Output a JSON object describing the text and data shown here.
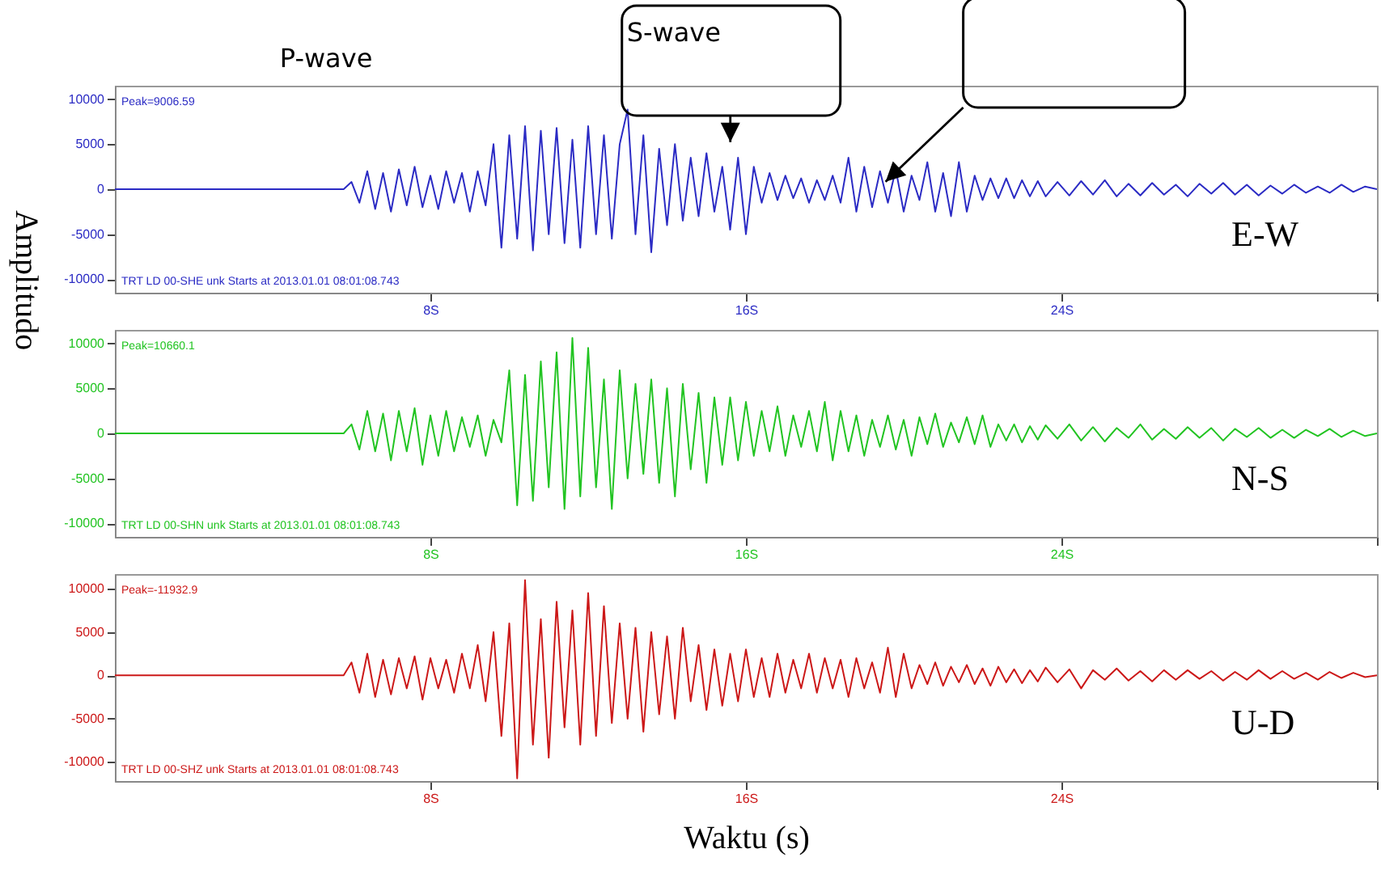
{
  "chart_data": [
    {
      "type": "line",
      "title": "E-W",
      "ylabel": "Amplitudo",
      "color": "#2b2bc4",
      "x": [
        0,
        1,
        2,
        3,
        4,
        5,
        5.8,
        6,
        6.2,
        6.4,
        6.6,
        6.8,
        7,
        7.2,
        7.4,
        7.6,
        7.8,
        8,
        8.2,
        8.4,
        8.6,
        8.8,
        9,
        9.2,
        9.4,
        9.6,
        9.8,
        10,
        10.2,
        10.4,
        10.6,
        10.8,
        11,
        11.2,
        11.4,
        11.6,
        11.8,
        12,
        12.2,
        12.4,
        12.6,
        12.8,
        13,
        13.2,
        13.4,
        13.6,
        13.8,
        14,
        14.2,
        14.4,
        14.6,
        14.8,
        15,
        15.2,
        15.4,
        15.6,
        15.8,
        16,
        16.2,
        16.4,
        16.6,
        16.8,
        17,
        17.2,
        17.4,
        17.6,
        17.8,
        18,
        18.2,
        18.4,
        18.6,
        18.8,
        19,
        19.2,
        19.4,
        19.6,
        19.8,
        20,
        20.2,
        20.4,
        20.6,
        20.8,
        21,
        21.2,
        21.4,
        21.6,
        21.8,
        22,
        22.2,
        22.4,
        22.6,
        22.8,
        23,
        23.2,
        23.4,
        23.6,
        23.9,
        24.2,
        24.5,
        24.8,
        25.1,
        25.4,
        25.7,
        26,
        26.3,
        26.6,
        26.9,
        27.2,
        27.5,
        27.8,
        28.1,
        28.4,
        28.7,
        29,
        29.3,
        29.6,
        29.9,
        30.2,
        30.5,
        30.8,
        31.1,
        31.4,
        31.7,
        32
      ],
      "values": [
        0,
        0,
        0,
        0,
        0,
        0,
        0,
        800,
        -1500,
        2000,
        -2200,
        1800,
        -2500,
        2200,
        -1800,
        2500,
        -2000,
        1500,
        -2200,
        2000,
        -1500,
        1800,
        -2500,
        2000,
        -1800,
        5000,
        -6500,
        6000,
        -5500,
        7000,
        -6800,
        6500,
        -5000,
        6800,
        -6000,
        5500,
        -6500,
        7000,
        -5000,
        6000,
        -5500,
        5000,
        8850,
        -5000,
        6000,
        -7000,
        4500,
        -4000,
        5000,
        -3500,
        3500,
        -3000,
        4000,
        -2500,
        2500,
        -4500,
        3500,
        -5000,
        2500,
        -1500,
        1800,
        -1200,
        1500,
        -1000,
        1200,
        -1500,
        1000,
        -1200,
        1500,
        -1500,
        3500,
        -2500,
        2500,
        -2000,
        2000,
        -1500,
        2200,
        -2500,
        1500,
        -1200,
        3000,
        -2500,
        1800,
        -3000,
        3000,
        -2500,
        1500,
        -1200,
        1200,
        -1000,
        1200,
        -1000,
        1000,
        -800,
        900,
        -800,
        800,
        -700,
        900,
        -600,
        1000,
        -800,
        600,
        -700,
        700,
        -600,
        500,
        -800,
        600,
        -500,
        700,
        -600,
        500,
        -700,
        400,
        -500,
        500,
        -400,
        300,
        -400,
        500,
        -300,
        300,
        0
      ],
      "xlim": [
        0,
        32
      ],
      "ylim": [
        -11500,
        11500
      ],
      "xticks": [
        {
          "value": 8,
          "label": "8S"
        },
        {
          "value": 16,
          "label": "16S"
        },
        {
          "value": 24,
          "label": "24S"
        },
        {
          "value": 32,
          "label": null
        }
      ],
      "yticks": [
        -10000,
        -5000,
        0,
        5000,
        10000
      ],
      "annotations": [
        "Peak=9006.59",
        "TRT LD 00-SHE  unk Starts at 2013.01.01 08:01:08.743",
        "P-wave",
        "S-wave"
      ]
    },
    {
      "type": "line",
      "title": "N-S",
      "color": "#22c422",
      "x": [
        0,
        1,
        2,
        3,
        4,
        5,
        5.8,
        6,
        6.2,
        6.4,
        6.6,
        6.8,
        7,
        7.2,
        7.4,
        7.6,
        7.8,
        8,
        8.2,
        8.4,
        8.6,
        8.8,
        9,
        9.2,
        9.4,
        9.6,
        9.8,
        10,
        10.2,
        10.4,
        10.6,
        10.8,
        11,
        11.2,
        11.4,
        11.6,
        11.8,
        12,
        12.2,
        12.4,
        12.6,
        12.8,
        13,
        13.2,
        13.4,
        13.6,
        13.8,
        14,
        14.2,
        14.4,
        14.6,
        14.8,
        15,
        15.2,
        15.4,
        15.6,
        15.8,
        16,
        16.2,
        16.4,
        16.6,
        16.8,
        17,
        17.2,
        17.4,
        17.6,
        17.8,
        18,
        18.2,
        18.4,
        18.6,
        18.8,
        19,
        19.2,
        19.4,
        19.6,
        19.8,
        20,
        20.2,
        20.4,
        20.6,
        20.8,
        21,
        21.2,
        21.4,
        21.6,
        21.8,
        22,
        22.2,
        22.4,
        22.6,
        22.8,
        23,
        23.2,
        23.4,
        23.6,
        23.9,
        24.2,
        24.5,
        24.8,
        25.1,
        25.4,
        25.7,
        26,
        26.3,
        26.6,
        26.9,
        27.2,
        27.5,
        27.8,
        28.1,
        28.4,
        28.7,
        29,
        29.3,
        29.6,
        29.9,
        30.2,
        30.5,
        30.8,
        31.1,
        31.4,
        31.7,
        32
      ],
      "values": [
        0,
        0,
        0,
        0,
        0,
        0,
        0,
        1000,
        -1800,
        2500,
        -2000,
        2200,
        -3000,
        2500,
        -2000,
        2800,
        -3500,
        2000,
        -2500,
        2500,
        -2000,
        1800,
        -1500,
        2000,
        -2500,
        1500,
        -1000,
        7000,
        -8000,
        6500,
        -7500,
        8000,
        -6000,
        9000,
        -8400,
        10600,
        -7000,
        9500,
        -6000,
        6000,
        -8400,
        7000,
        -5000,
        5500,
        -4500,
        6000,
        -5500,
        5000,
        -7000,
        5500,
        -4000,
        4500,
        -5500,
        4000,
        -3500,
        4000,
        -3000,
        3500,
        -2500,
        2500,
        -2000,
        3000,
        -2500,
        2000,
        -1500,
        2500,
        -2000,
        3500,
        -3000,
        2500,
        -2000,
        2000,
        -2500,
        1500,
        -1500,
        2000,
        -1800,
        1500,
        -2500,
        1800,
        -1200,
        2200,
        -1500,
        1200,
        -1000,
        1800,
        -1200,
        2000,
        -1500,
        1000,
        -800,
        1000,
        -1000,
        800,
        -700,
        900,
        -600,
        1000,
        -800,
        700,
        -900,
        600,
        -500,
        1000,
        -700,
        500,
        -600,
        700,
        -500,
        600,
        -800,
        500,
        -400,
        600,
        -500,
        400,
        -500,
        400,
        -300,
        500,
        -400,
        300,
        -300,
        0
      ],
      "xlim": [
        0,
        32
      ],
      "ylim": [
        -11500,
        11500
      ],
      "xticks": [
        {
          "value": 8,
          "label": "8S"
        },
        {
          "value": 16,
          "label": "16S"
        },
        {
          "value": 24,
          "label": "24S"
        },
        {
          "value": 32,
          "label": null
        }
      ],
      "yticks": [
        -10000,
        -5000,
        0,
        5000,
        10000
      ],
      "annotations": [
        "Peak=10660.1",
        "TRT LD 00-SHN  unk Starts at 2013.01.01 08:01:08.743"
      ]
    },
    {
      "type": "line",
      "title": "U-D",
      "xlabel": "Waktu (s)",
      "color": "#cc1818",
      "x": [
        0,
        1,
        2,
        3,
        4,
        5,
        5.8,
        6,
        6.2,
        6.4,
        6.6,
        6.8,
        7,
        7.2,
        7.4,
        7.6,
        7.8,
        8,
        8.2,
        8.4,
        8.6,
        8.8,
        9,
        9.2,
        9.4,
        9.6,
        9.8,
        10,
        10.2,
        10.4,
        10.6,
        10.8,
        11,
        11.2,
        11.4,
        11.6,
        11.8,
        12,
        12.2,
        12.4,
        12.6,
        12.8,
        13,
        13.2,
        13.4,
        13.6,
        13.8,
        14,
        14.2,
        14.4,
        14.6,
        14.8,
        15,
        15.2,
        15.4,
        15.6,
        15.8,
        16,
        16.2,
        16.4,
        16.6,
        16.8,
        17,
        17.2,
        17.4,
        17.6,
        17.8,
        18,
        18.2,
        18.4,
        18.6,
        18.8,
        19,
        19.2,
        19.4,
        19.6,
        19.8,
        20,
        20.2,
        20.4,
        20.6,
        20.8,
        21,
        21.2,
        21.4,
        21.6,
        21.8,
        22,
        22.2,
        22.4,
        22.6,
        22.8,
        23,
        23.2,
        23.4,
        23.6,
        23.9,
        24.2,
        24.5,
        24.8,
        25.1,
        25.4,
        25.7,
        26,
        26.3,
        26.6,
        26.9,
        27.2,
        27.5,
        27.8,
        28.1,
        28.4,
        28.7,
        29,
        29.3,
        29.6,
        29.9,
        30.2,
        30.5,
        30.8,
        31.1,
        31.4,
        31.7,
        32
      ],
      "values": [
        0,
        0,
        0,
        0,
        0,
        0,
        0,
        1500,
        -2000,
        2500,
        -2500,
        1800,
        -2200,
        2000,
        -1500,
        2200,
        -2800,
        2000,
        -1500,
        1800,
        -2000,
        2500,
        -1500,
        3500,
        -3000,
        5000,
        -7000,
        6000,
        -11900,
        11000,
        -8000,
        6500,
        -9500,
        8500,
        -6000,
        7500,
        -8000,
        9500,
        -7000,
        8000,
        -5500,
        6000,
        -5000,
        5500,
        -6500,
        5000,
        -4500,
        4500,
        -5000,
        5500,
        -3000,
        3500,
        -4000,
        3000,
        -3500,
        2500,
        -3000,
        3000,
        -2500,
        2000,
        -2500,
        2500,
        -2000,
        1800,
        -1500,
        2500,
        -2000,
        2000,
        -1500,
        1800,
        -2500,
        2000,
        -1500,
        1500,
        -2000,
        3200,
        -2500,
        2500,
        -1500,
        1200,
        -1000,
        1500,
        -1200,
        1000,
        -800,
        1200,
        -1000,
        800,
        -1200,
        1000,
        -800,
        700,
        -900,
        600,
        -700,
        900,
        -800,
        700,
        -1500,
        600,
        -500,
        800,
        -600,
        500,
        -700,
        600,
        -500,
        600,
        -400,
        500,
        -600,
        400,
        -500,
        600,
        -400,
        500,
        -400,
        300,
        -500,
        400,
        -300,
        300,
        -200,
        0
      ],
      "xlim": [
        0,
        32
      ],
      "ylim": [
        -12200,
        11700
      ],
      "xticks": [
        {
          "value": 8,
          "label": "8S"
        },
        {
          "value": 16,
          "label": "16S"
        },
        {
          "value": 24,
          "label": "24S"
        },
        {
          "value": 32,
          "label": null
        }
      ],
      "yticks": [
        -10000,
        -5000,
        0,
        5000,
        10000
      ],
      "annotations": [
        "Peak=-11932.9",
        "TRT LD 00-SHZ  unk Starts at 2013.01.01 08:01:08.743"
      ]
    }
  ]
}
